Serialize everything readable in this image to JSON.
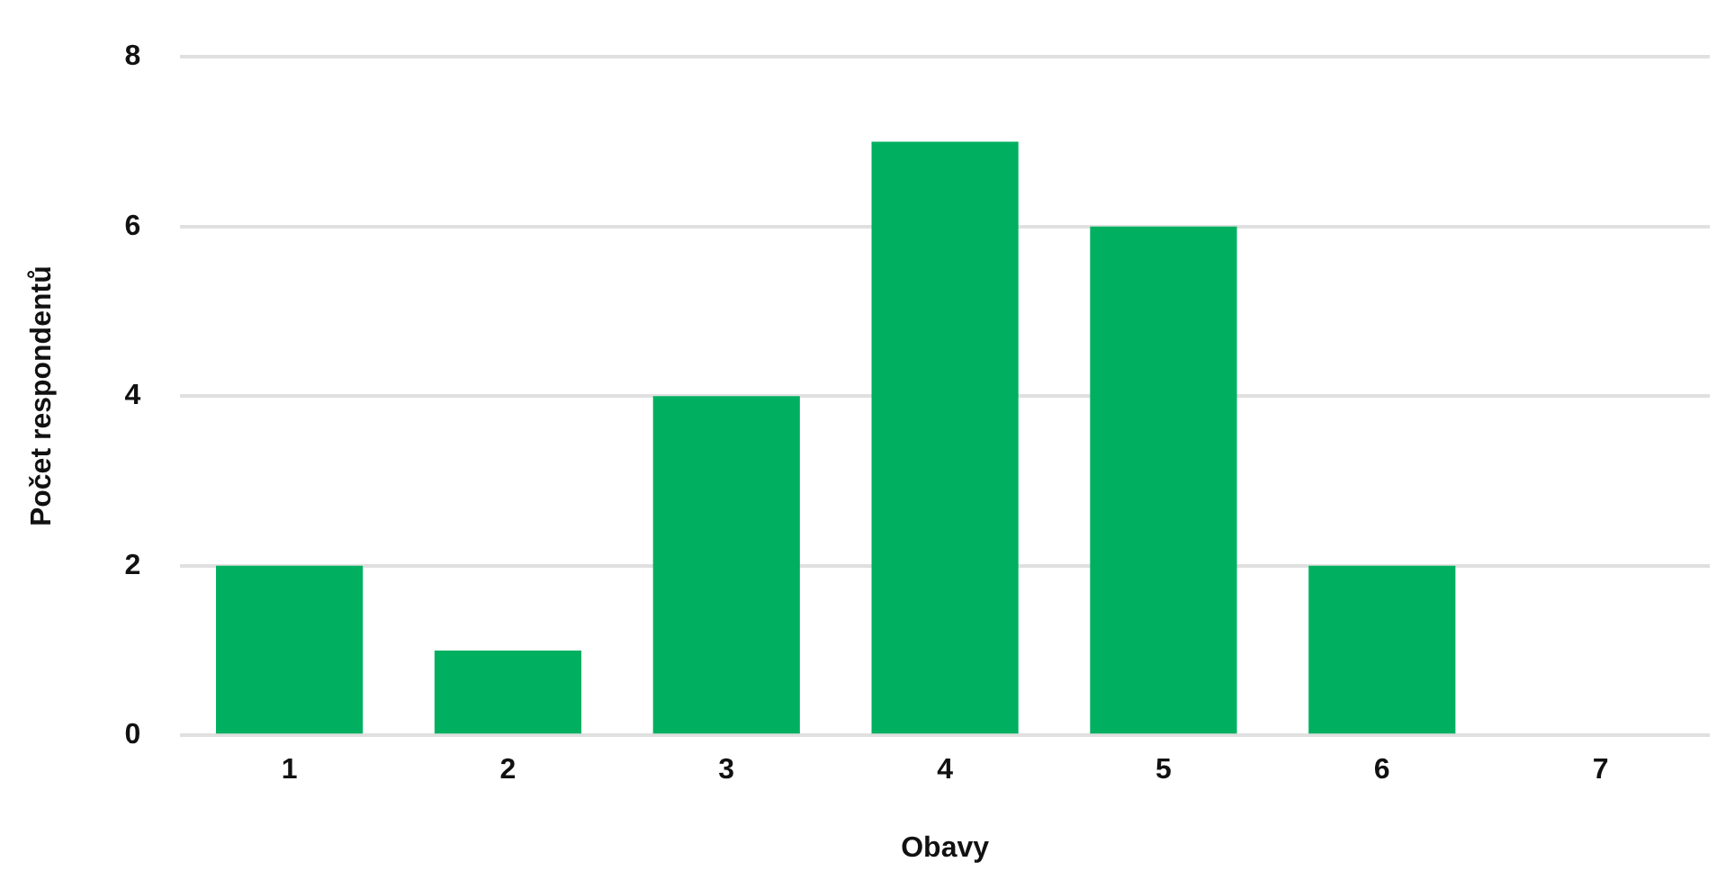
{
  "chart_data": {
    "type": "bar",
    "xlabel": "Obavy",
    "ylabel": "Počet respondentů",
    "categories": [
      "1",
      "2",
      "3",
      "4",
      "5",
      "6",
      "7"
    ],
    "values": [
      2,
      1,
      4,
      7,
      6,
      2,
      0
    ],
    "color": "#00b060",
    "ylim": [
      0,
      8
    ],
    "yticks": [
      0,
      2,
      4,
      6,
      8
    ],
    "grid": "y",
    "legend": false
  }
}
